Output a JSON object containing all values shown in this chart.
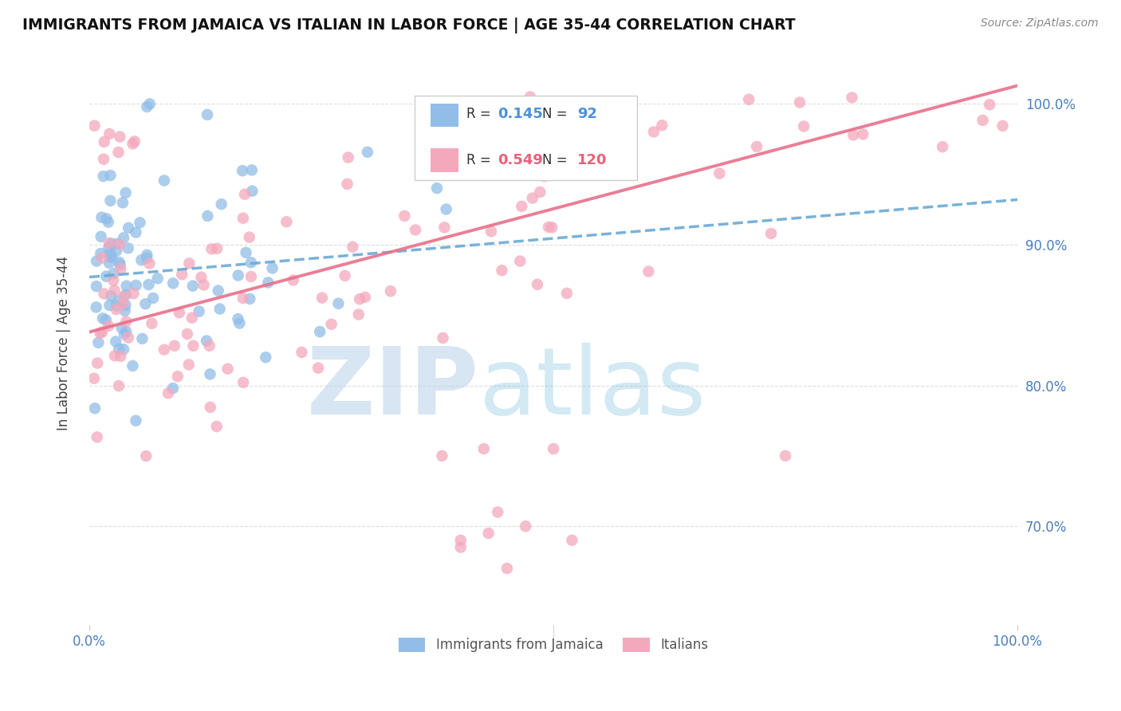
{
  "title": "IMMIGRANTS FROM JAMAICA VS ITALIAN IN LABOR FORCE | AGE 35-44 CORRELATION CHART",
  "source": "Source: ZipAtlas.com",
  "ylabel": "In Labor Force | Age 35-44",
  "jamaica_color": "#92BDE8",
  "italian_color": "#F4A8BC",
  "jamaica_line_color": "#6AAAD4",
  "italian_line_color": "#E8708A",
  "jamaica_label": "Immigrants from Jamaica",
  "italian_label": "Italians",
  "legend_r1_val": "0.145",
  "legend_n1_val": "92",
  "legend_r2_val": "0.549",
  "legend_n2_val": "120",
  "xlim": [
    0.0,
    1.0
  ],
  "ylim": [
    0.63,
    1.03
  ],
  "right_ytick_vals": [
    0.7,
    0.8,
    0.9,
    1.0
  ],
  "right_ytick_labels": [
    "70.0%",
    "80.0%",
    "90.0%",
    "100.0%"
  ],
  "background_color": "#ffffff"
}
